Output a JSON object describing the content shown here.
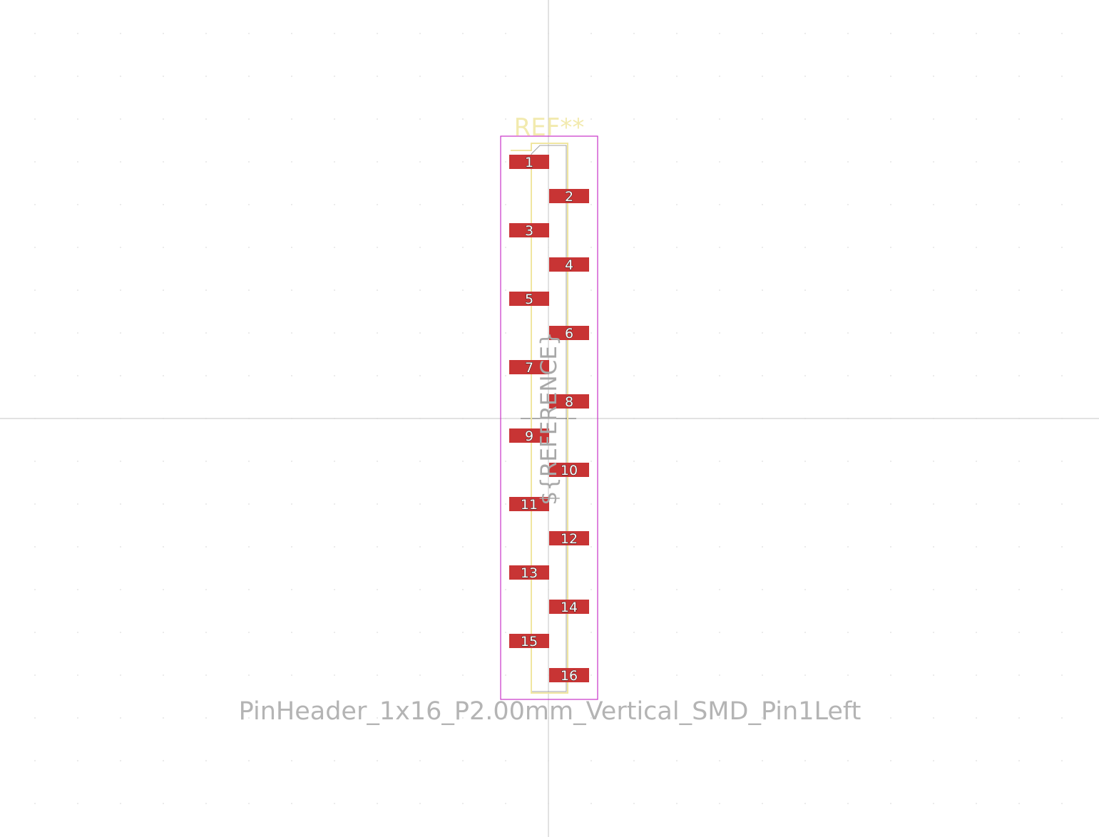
{
  "footprint": {
    "reference_label": "REF**",
    "reference_field": "${REFERENCE}",
    "value_label": "PinHeader_1x16_P2.00mm_Vertical_SMD_Pin1Left",
    "pin_count": 16,
    "pads": [
      {
        "number": "1",
        "side": "left"
      },
      {
        "number": "2",
        "side": "right"
      },
      {
        "number": "3",
        "side": "left"
      },
      {
        "number": "4",
        "side": "right"
      },
      {
        "number": "5",
        "side": "left"
      },
      {
        "number": "6",
        "side": "right"
      },
      {
        "number": "7",
        "side": "left"
      },
      {
        "number": "8",
        "side": "right"
      },
      {
        "number": "9",
        "side": "left"
      },
      {
        "number": "10",
        "side": "right"
      },
      {
        "number": "11",
        "side": "left"
      },
      {
        "number": "12",
        "side": "right"
      },
      {
        "number": "13",
        "side": "left"
      },
      {
        "number": "14",
        "side": "right"
      },
      {
        "number": "15",
        "side": "left"
      },
      {
        "number": "16",
        "side": "right"
      }
    ]
  },
  "colors": {
    "background": "#ffffff",
    "grid_dot": "#c8c8c8",
    "crosshair": "#c4c4c4",
    "pad": "#c83434",
    "silkscreen": "#f0e6a0",
    "courtyard": "#c832c8",
    "fab": "#a0a0a0"
  }
}
